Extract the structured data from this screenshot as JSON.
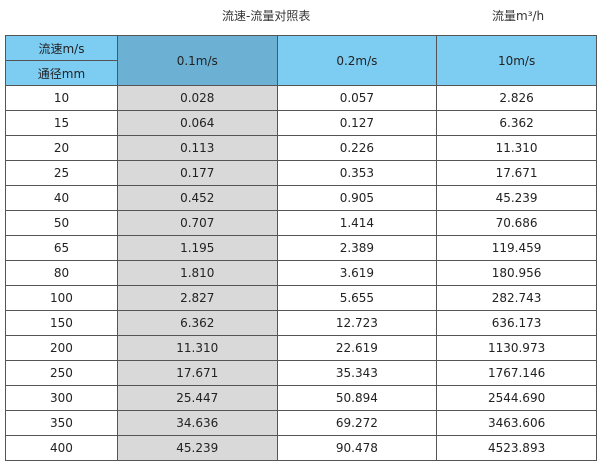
{
  "title": "流速-流量对照表",
  "unit": "流量m³/h",
  "header": {
    "velocity_label": "流速m/s",
    "diameter_label": "通径mm",
    "columns": [
      "0.1m/s",
      "0.2m/s",
      "10m/s"
    ]
  },
  "rows": [
    [
      "10",
      "0.028",
      "0.057",
      "2.826"
    ],
    [
      "15",
      "0.064",
      "0.127",
      "6.362"
    ],
    [
      "20",
      "0.113",
      "0.226",
      "11.310"
    ],
    [
      "25",
      "0.177",
      "0.353",
      "17.671"
    ],
    [
      "40",
      "0.452",
      "0.905",
      "45.239"
    ],
    [
      "50",
      "0.707",
      "1.414",
      "70.686"
    ],
    [
      "65",
      "1.195",
      "2.389",
      "119.459"
    ],
    [
      "80",
      "1.810",
      "3.619",
      "180.956"
    ],
    [
      "100",
      "2.827",
      "5.655",
      "282.743"
    ],
    [
      "150",
      "6.362",
      "12.723",
      "636.173"
    ],
    [
      "200",
      "11.310",
      "22.619",
      "1130.973"
    ],
    [
      "250",
      "17.671",
      "35.343",
      "1767.146"
    ],
    [
      "300",
      "25.447",
      "50.894",
      "2544.690"
    ],
    [
      "350",
      "34.636",
      "69.272",
      "3463.606"
    ],
    [
      "400",
      "45.239",
      "90.478",
      "4523.893"
    ]
  ],
  "colors": {
    "header": "#7dcdf3",
    "header_selected": "#6cb0d4",
    "column_highlight": "#d9d9d9"
  }
}
